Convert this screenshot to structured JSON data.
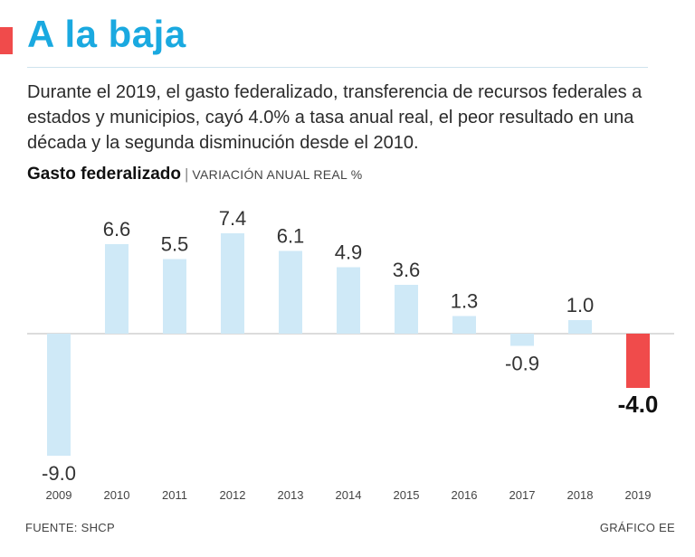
{
  "title": "A la baja",
  "description": "Durante el 2019, el gasto federalizado, transferencia de recursos federales a estados y municipios, cayó 4.0% a tasa anual real, el peor resultado en una década y la segunda disminución desde  el 2010.",
  "subtitle": {
    "main": "Gasto federalizado",
    "separator": "|",
    "sub": "VARIACIÓN ANUAL REAL %"
  },
  "footer": {
    "source": "FUENTE: SHCP",
    "credit": "GRÁFICO EE"
  },
  "colors": {
    "title": "#1aa9e0",
    "bar": "#cfe9f7",
    "highlight": "#f04b4b",
    "accent": "#f04b4b"
  },
  "chart_data": {
    "type": "bar",
    "title": "Gasto federalizado",
    "ylabel": "VARIACIÓN ANUAL REAL %",
    "categories": [
      "2009",
      "2010",
      "2011",
      "2012",
      "2013",
      "2014",
      "2015",
      "2016",
      "2017",
      "2018",
      "2019"
    ],
    "values": [
      -9.0,
      6.6,
      5.5,
      7.4,
      6.1,
      4.9,
      3.6,
      1.3,
      -0.9,
      1.0,
      -4.0
    ],
    "labels": [
      "-9.0",
      "6.6",
      "5.5",
      "7.4",
      "6.1",
      "4.9",
      "3.6",
      "1.3",
      "-0.9",
      "1.0",
      "-4.0"
    ],
    "highlight_index": 10,
    "ylim": [
      -9.0,
      7.4
    ],
    "grid": false
  }
}
